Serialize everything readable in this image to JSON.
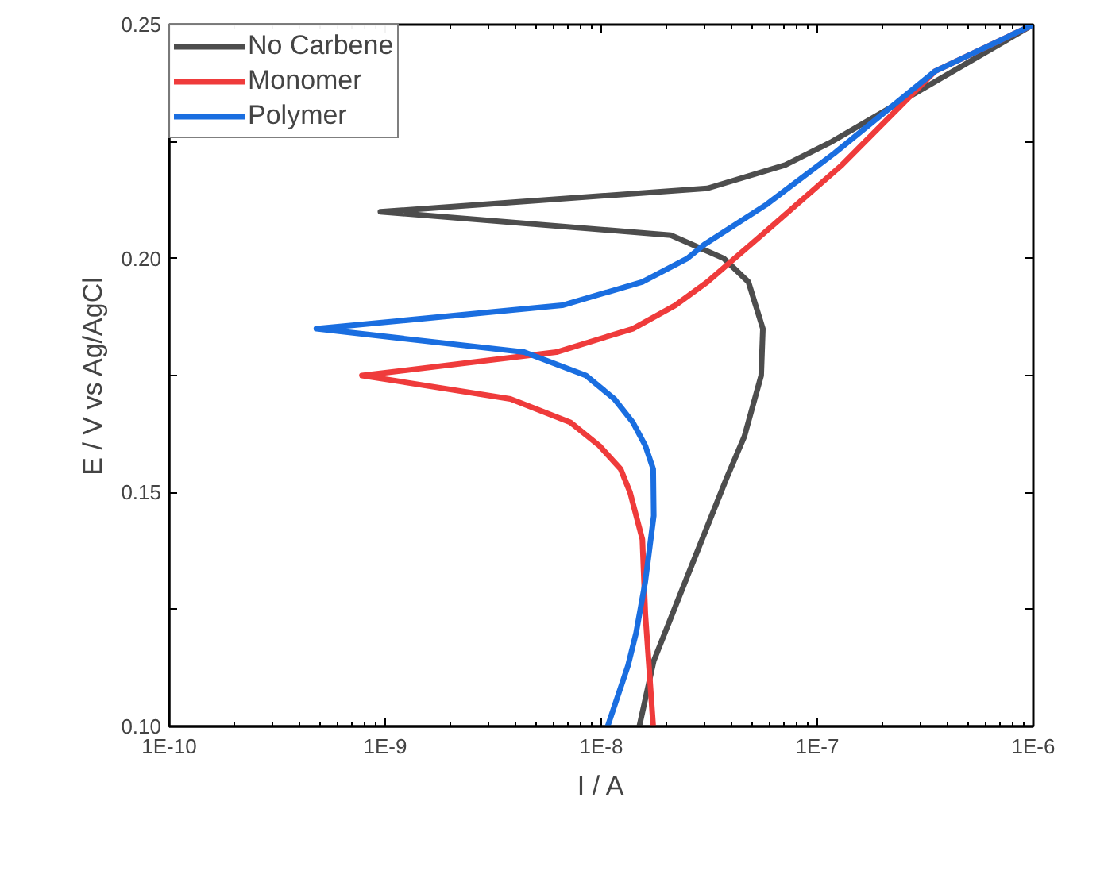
{
  "chart_data": {
    "type": "line",
    "xlabel": "I / A",
    "ylabel": "E / V vs Ag/AgCl",
    "log": "x",
    "xlim": [
      1e-10,
      1e-06
    ],
    "ylim": [
      0.1,
      0.25
    ],
    "xticks": [
      {
        "value": 1e-10,
        "label": "1E-10"
      },
      {
        "value": 1e-09,
        "label": "1E-9"
      },
      {
        "value": 1e-08,
        "label": "1E-8"
      },
      {
        "value": 1e-07,
        "label": "1E-7"
      },
      {
        "value": 1e-06,
        "label": "1E-6"
      }
    ],
    "yticks": [
      {
        "value": 0.1,
        "label": "0.10"
      },
      {
        "value": 0.125,
        "label": null
      },
      {
        "value": 0.15,
        "label": "0.15"
      },
      {
        "value": 0.175,
        "label": null
      },
      {
        "value": 0.2,
        "label": "0.20"
      },
      {
        "value": 0.225,
        "label": null
      },
      {
        "value": 0.25,
        "label": "0.25"
      }
    ],
    "grid": false,
    "legend": "top left",
    "line_style": "solid",
    "marker": "none",
    "series": [
      {
        "name": "No Carbene",
        "color": "#4d4d4d",
        "x": [
          1e-06,
          1.17e-07,
          7.1e-08,
          3.1e-08,
          9.5e-10,
          2.1e-08,
          3.7e-08,
          4.8e-08,
          5.6e-08,
          5.5e-08,
          4.6e-08,
          3.8e-08,
          2.5e-08,
          1.75e-08,
          1.5e-08
        ],
        "values": [
          0.25,
          0.225,
          0.22,
          0.215,
          0.21,
          0.205,
          0.2,
          0.195,
          0.185,
          0.175,
          0.162,
          0.153,
          0.132,
          0.114,
          0.1
        ]
      },
      {
        "name": "Monomer",
        "color": "#ef3b3b",
        "x": [
          1e-06,
          3.5e-07,
          1.3e-07,
          6.2e-08,
          3.1e-08,
          2.2e-08,
          1.4e-08,
          6.2e-09,
          7.8e-10,
          3.8e-09,
          7.2e-09,
          9.8e-09,
          1.23e-08,
          1.36e-08,
          1.55e-08,
          1.6e-08,
          1.74e-08
        ],
        "values": [
          0.25,
          0.24,
          0.22,
          0.207,
          0.195,
          0.19,
          0.185,
          0.18,
          0.175,
          0.17,
          0.165,
          0.16,
          0.155,
          0.15,
          0.14,
          0.124,
          0.1
        ]
      },
      {
        "name": "Polymer",
        "color": "#1a6ee0",
        "x": [
          1e-06,
          3.5e-07,
          1.2e-07,
          5.8e-08,
          3e-08,
          2.5e-08,
          1.55e-08,
          6.6e-09,
          4.8e-10,
          4.4e-09,
          8.5e-09,
          1.15e-08,
          1.4e-08,
          1.6e-08,
          1.74e-08,
          1.75e-08,
          1.6e-08,
          1.45e-08,
          1.33e-08,
          1.07e-08
        ],
        "values": [
          0.25,
          0.24,
          0.2225,
          0.2115,
          0.203,
          0.2,
          0.195,
          0.19,
          0.185,
          0.18,
          0.175,
          0.17,
          0.165,
          0.16,
          0.155,
          0.145,
          0.131,
          0.12,
          0.113,
          0.1
        ]
      }
    ]
  }
}
